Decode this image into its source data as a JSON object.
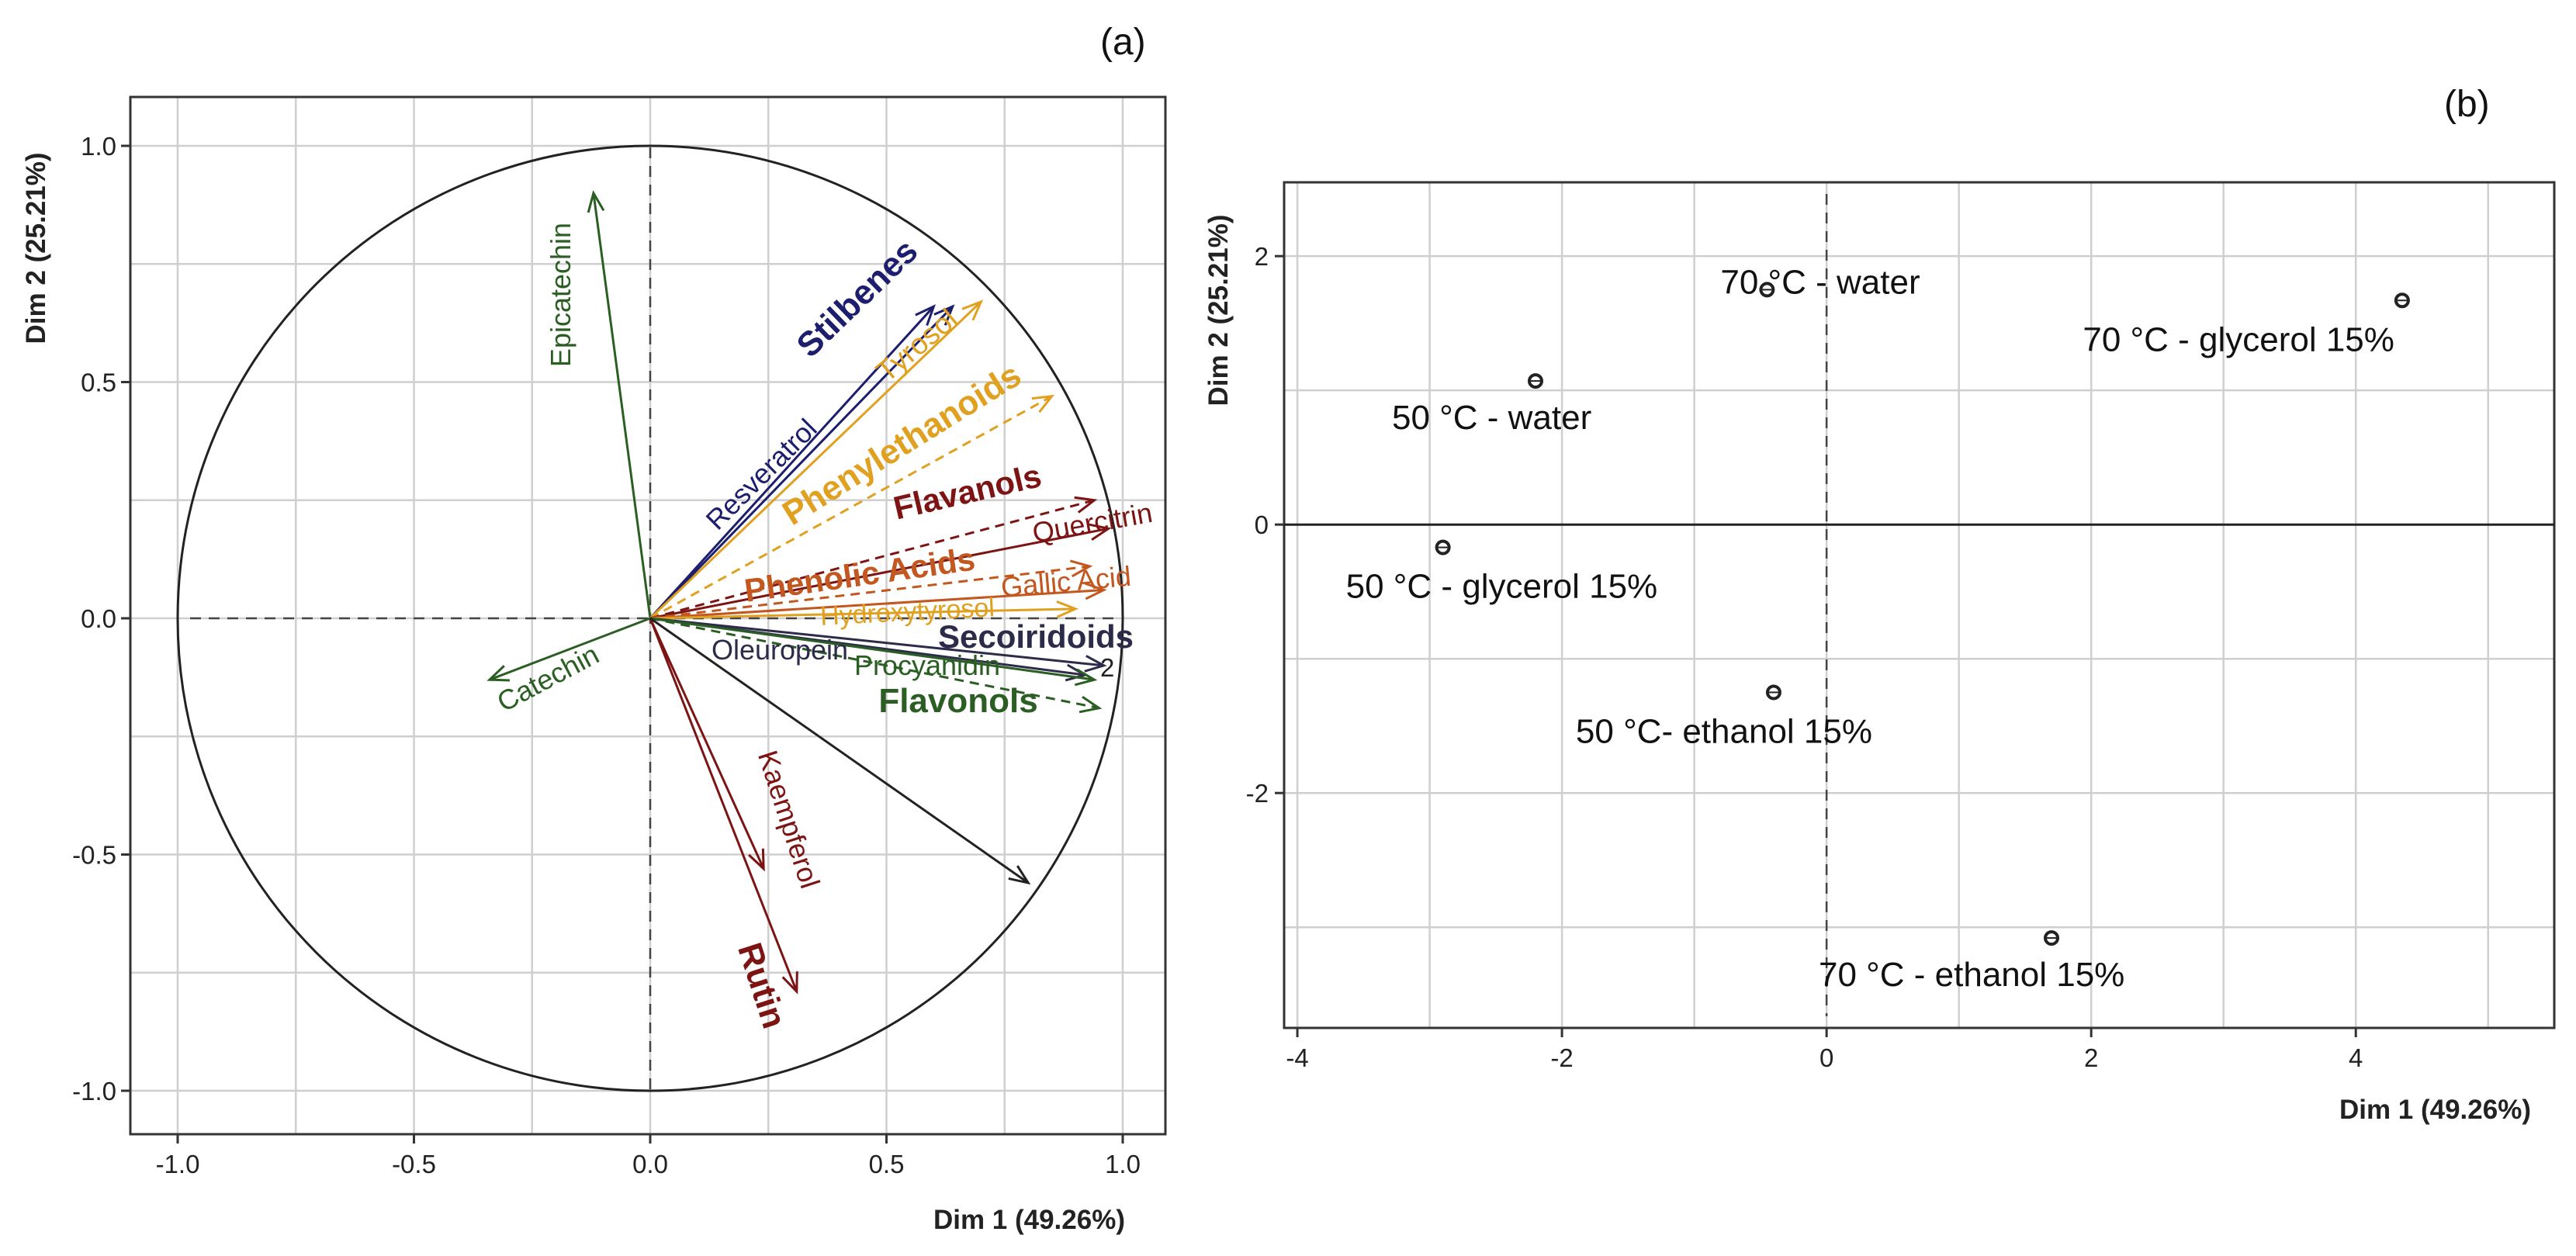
{
  "colors": {
    "green": "#2b5e23",
    "navy": "#1d1f6e",
    "gold": "#e0a020",
    "darkred": "#7d1414",
    "rust": "#c2571f",
    "black": "#222222",
    "slate": "#2c2c4a"
  },
  "chart_data": [
    {
      "panel": "(a)",
      "type": "scatter",
      "subtype": "PCA correlation circle (variable loadings as arrows)",
      "xlabel": "Dim 1 (49.26%)",
      "ylabel": "Dim 2 (25.21%)",
      "xlim": [
        -1.1,
        1.1
      ],
      "ylim": [
        -1.1,
        1.1
      ],
      "xticks": [
        -1.0,
        -0.5,
        0.0,
        0.5,
        1.0
      ],
      "yticks": [
        -1.0,
        -0.5,
        0.0,
        0.5,
        1.0
      ],
      "xtick_labels": [
        "-1.0",
        "-0.5",
        "0.0",
        "0.5",
        "1.0"
      ],
      "ytick_labels": [
        "-1.0",
        "-0.5",
        "0.0",
        "0.5",
        "1.0"
      ],
      "grid": true,
      "unit_circle": true,
      "variables": [
        {
          "name": "Epicatechin",
          "x": -0.12,
          "y": 0.9,
          "color": "green",
          "dashed": false,
          "bold": false
        },
        {
          "name": "Catechin",
          "x": -0.34,
          "y": -0.13,
          "color": "green",
          "dashed": false,
          "bold": false
        },
        {
          "name": "Resveratrol",
          "x": 0.6,
          "y": 0.66,
          "color": "navy",
          "dashed": false,
          "bold": false
        },
        {
          "name": "Stilbenes",
          "x": 0.64,
          "y": 0.66,
          "color": "navy",
          "dashed": false,
          "bold": true
        },
        {
          "name": "Tyrosol",
          "x": 0.7,
          "y": 0.67,
          "color": "gold",
          "dashed": false,
          "bold": false
        },
        {
          "name": "Phenylethanoids",
          "x": 0.85,
          "y": 0.47,
          "color": "gold",
          "dashed": true,
          "bold": true
        },
        {
          "name": "Flavanols",
          "x": 0.94,
          "y": 0.25,
          "color": "darkred",
          "dashed": true,
          "bold": true
        },
        {
          "name": "Quercitrin",
          "x": 0.97,
          "y": 0.19,
          "color": "darkred",
          "dashed": false,
          "bold": false
        },
        {
          "name": "Phenolic Acids",
          "x": 0.93,
          "y": 0.11,
          "color": "rust",
          "dashed": true,
          "bold": true
        },
        {
          "name": "Gallic Acid",
          "x": 0.96,
          "y": 0.06,
          "color": "rust",
          "dashed": false,
          "bold": false
        },
        {
          "name": "Hydroxytyrosol",
          "x": 0.9,
          "y": 0.02,
          "color": "gold",
          "dashed": false,
          "bold": false
        },
        {
          "name": "Secoiridoids",
          "x": 0.96,
          "y": -0.1,
          "color": "slate",
          "dashed": false,
          "bold": true
        },
        {
          "name": "Oleuropein",
          "x": 0.92,
          "y": -0.12,
          "color": "slate",
          "dashed": false,
          "bold": false
        },
        {
          "name": "Procyanidin",
          "x": 0.94,
          "y": -0.13,
          "color": "green",
          "dashed": false,
          "bold": false
        },
        {
          "name": "Flavonols",
          "x": 0.95,
          "y": -0.19,
          "color": "green",
          "dashed": true,
          "bold": true
        },
        {
          "name": "Kaempferol",
          "x": 0.24,
          "y": -0.53,
          "color": "darkred",
          "dashed": false,
          "bold": false
        },
        {
          "name": "Rutin",
          "x": 0.31,
          "y": -0.79,
          "color": "darkred",
          "dashed": false,
          "bold": true
        },
        {
          "name": "",
          "x": 0.8,
          "y": -0.56,
          "color": "black",
          "dashed": false,
          "bold": false
        }
      ],
      "annotations": [
        "2"
      ]
    },
    {
      "panel": "(b)",
      "type": "scatter",
      "subtype": "PCA individuals map",
      "xlabel": "Dim 1 (49.26%)",
      "ylabel": "Dim 2 (25.21%)",
      "xlim": [
        -4.1,
        5.5
      ],
      "ylim": [
        -3.75,
        2.55
      ],
      "xticks": [
        -4,
        -2,
        0,
        2,
        4
      ],
      "yticks": [
        -2,
        0,
        2
      ],
      "xtick_labels": [
        "-4",
        "-2",
        "0",
        "2",
        "4"
      ],
      "ytick_labels": [
        "-2",
        "0",
        "2"
      ],
      "grid": true,
      "points": [
        {
          "label": "70 °C - water",
          "x": -0.45,
          "y": 1.75
        },
        {
          "label": "70 °C - glycerol 15%",
          "x": 4.35,
          "y": 1.67
        },
        {
          "label": "50 °C - water",
          "x": -2.2,
          "y": 1.07
        },
        {
          "label": "50 °C - glycerol 15%",
          "x": -2.9,
          "y": -0.17
        },
        {
          "label": "50 °C- ethanol 15%",
          "x": -0.4,
          "y": -1.25
        },
        {
          "label": "70 °C - ethanol 15%",
          "x": 1.7,
          "y": -3.08
        }
      ]
    }
  ]
}
